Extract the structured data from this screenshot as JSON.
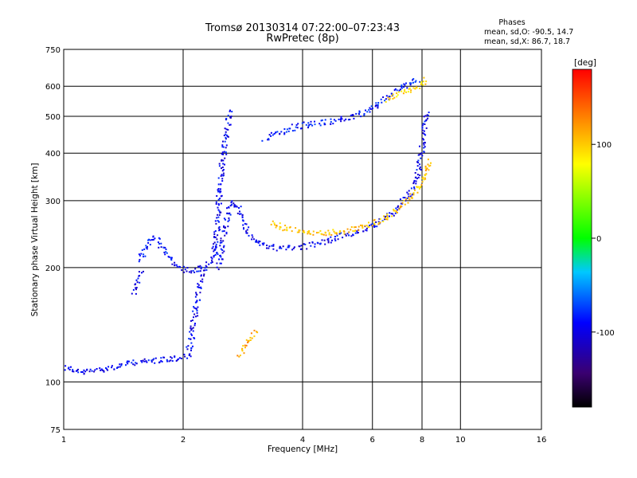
{
  "chart_data": {
    "type": "scatter",
    "title": "Tromsø 20130314 07:22:00–07:23:43",
    "subtitle": "RwPretec (8p)",
    "xlabel": "Frequency [MHz]",
    "ylabel": "Stationary phase Virtual Height [km]",
    "xscale": "log",
    "yscale": "log",
    "xlim": [
      1,
      16
    ],
    "ylim": [
      75,
      750
    ],
    "xticks": [
      "1",
      "2",
      "4",
      "6",
      "8",
      "10",
      "16"
    ],
    "yticks": [
      "75",
      "100",
      "200",
      "300",
      "400",
      "500",
      "600",
      "750"
    ],
    "grid": true,
    "stats": {
      "heading": "Phases",
      "line1": "mean, sd,O: -90.5, 14.7",
      "line2": "mean, sd,X: 86.7, 18.7"
    },
    "colorbar": {
      "label": "[deg]",
      "range": [
        -180,
        180
      ],
      "ticks": [
        "100",
        "0",
        "-100"
      ],
      "colormap": "rainbow"
    },
    "traces": [
      {
        "phase": -95,
        "points": [
          [
            1.0,
            110
          ],
          [
            1.1,
            106
          ],
          [
            1.2,
            108
          ],
          [
            1.35,
            110
          ],
          [
            1.5,
            113
          ],
          [
            1.65,
            114
          ],
          [
            1.8,
            115
          ],
          [
            1.95,
            116
          ],
          [
            2.05,
            118
          ],
          [
            2.1,
            135
          ],
          [
            2.15,
            160
          ],
          [
            2.2,
            185
          ],
          [
            2.25,
            200
          ],
          [
            2.3,
            205
          ],
          [
            2.35,
            210
          ],
          [
            2.4,
            230
          ]
        ]
      },
      {
        "phase": -90,
        "points": [
          [
            1.55,
            210
          ],
          [
            1.6,
            228
          ],
          [
            1.65,
            240
          ],
          [
            1.72,
            236
          ],
          [
            1.8,
            220
          ],
          [
            1.9,
            205
          ],
          [
            2.0,
            198
          ],
          [
            2.12,
            197
          ],
          [
            2.25,
            200
          ]
        ]
      },
      {
        "phase": -100,
        "points": [
          [
            1.5,
            172
          ],
          [
            1.52,
            180
          ],
          [
            1.55,
            190
          ],
          [
            1.57,
            197
          ]
        ]
      },
      {
        "phase": -95,
        "points": [
          [
            2.4,
            220
          ],
          [
            2.45,
            300
          ],
          [
            2.5,
            380
          ],
          [
            2.55,
            440
          ],
          [
            2.6,
            500
          ],
          [
            2.65,
            520
          ]
        ]
      },
      {
        "phase": -95,
        "points": [
          [
            2.45,
            200
          ],
          [
            2.5,
            230
          ],
          [
            2.55,
            260
          ],
          [
            2.6,
            290
          ],
          [
            2.7,
            300
          ],
          [
            2.8,
            270
          ],
          [
            2.9,
            250
          ],
          [
            3.0,
            238
          ],
          [
            3.2,
            230
          ],
          [
            3.5,
            225
          ],
          [
            4.0,
            228
          ],
          [
            4.5,
            235
          ],
          [
            5.0,
            243
          ],
          [
            5.5,
            250
          ],
          [
            6.0,
            258
          ],
          [
            6.5,
            272
          ],
          [
            7.0,
            293
          ],
          [
            7.5,
            320
          ],
          [
            7.8,
            360
          ],
          [
            8.0,
            420
          ],
          [
            8.1,
            480
          ],
          [
            8.2,
            520
          ]
        ]
      },
      {
        "phase": -88,
        "points": [
          [
            3.2,
            440
          ],
          [
            3.5,
            455
          ],
          [
            3.8,
            470
          ],
          [
            4.2,
            480
          ],
          [
            4.8,
            488
          ],
          [
            5.5,
            505
          ],
          [
            6.0,
            530
          ],
          [
            6.5,
            565
          ],
          [
            7.0,
            595
          ],
          [
            7.5,
            618
          ],
          [
            7.8,
            628
          ]
        ]
      },
      {
        "phase": 105,
        "points": [
          [
            3.3,
            265
          ],
          [
            3.6,
            255
          ],
          [
            4.0,
            250
          ],
          [
            4.5,
            248
          ],
          [
            5.0,
            250
          ],
          [
            5.5,
            255
          ],
          [
            6.0,
            262
          ],
          [
            6.5,
            275
          ],
          [
            7.0,
            290
          ],
          [
            7.5,
            310
          ],
          [
            8.0,
            335
          ],
          [
            8.2,
            360
          ],
          [
            8.3,
            390
          ]
        ]
      },
      {
        "phase": 95,
        "points": [
          [
            6.5,
            555
          ],
          [
            7.0,
            575
          ],
          [
            7.5,
            592
          ],
          [
            8.0,
            612
          ],
          [
            8.2,
            630
          ]
        ]
      },
      {
        "phase": 115,
        "points": [
          [
            2.75,
            118
          ],
          [
            2.85,
            125
          ],
          [
            2.95,
            130
          ],
          [
            3.05,
            137
          ]
        ]
      }
    ]
  }
}
